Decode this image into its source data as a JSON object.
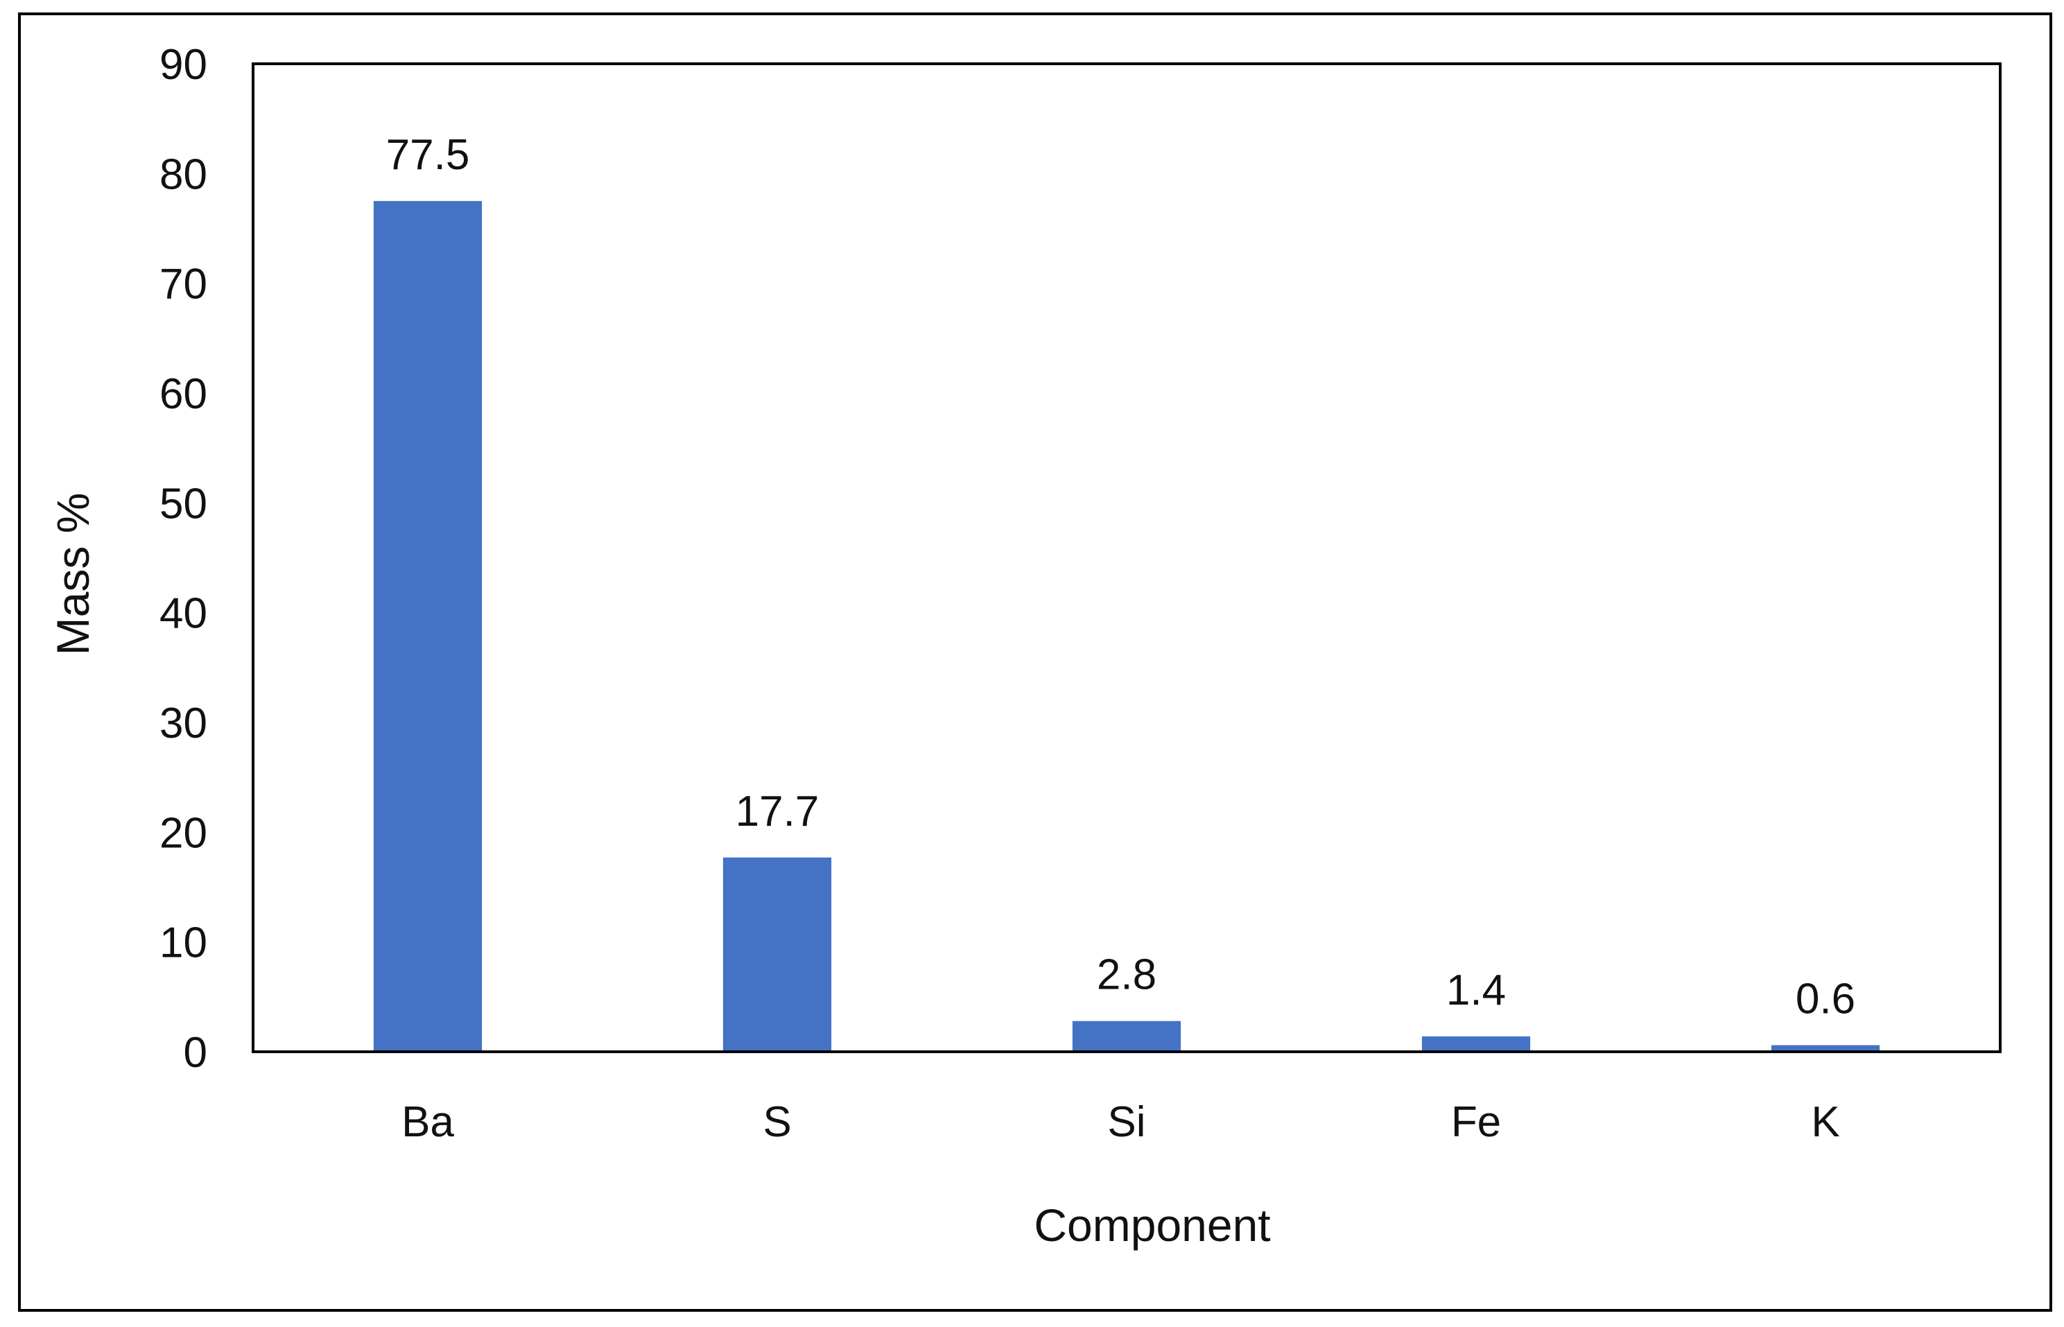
{
  "chart_data": {
    "type": "bar",
    "title": "",
    "xlabel": "Component",
    "ylabel": "Mass %",
    "categories": [
      "Ba",
      "S",
      "Si",
      "Fe",
      "K"
    ],
    "values": [
      77.5,
      17.7,
      2.8,
      1.4,
      0.6
    ],
    "data_labels": [
      "77.5",
      "17.7",
      "2.8",
      "1.4",
      "0.6"
    ],
    "ylim": [
      0,
      90
    ],
    "yticks": [
      0,
      10,
      20,
      30,
      40,
      50,
      60,
      70,
      80,
      90
    ],
    "grid": false,
    "legend": "none",
    "bar_color": "#4472C4"
  }
}
